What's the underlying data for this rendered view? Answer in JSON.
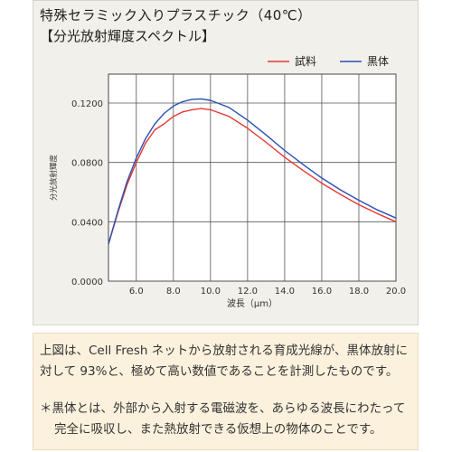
{
  "chart": {
    "title": "特殊セラミック入りプラスチック（40℃）",
    "subtitle": "【分光放射輝度スペクトル】"
  },
  "chart_data": {
    "type": "line",
    "title": "特殊セラミック入りプラスチック（40℃）",
    "subtitle": "【分光放射輝度スペクトル】",
    "xlabel": "波長（μm）",
    "ylabel": "分光放射輝度",
    "xlim": [
      4.5,
      20.0
    ],
    "ylim": [
      0.0,
      0.12
    ],
    "xticks": [
      "6.0",
      "8.0",
      "10.0",
      "12.0",
      "14.0",
      "16.0",
      "18.0",
      "20.0"
    ],
    "yticks": [
      "0.0000",
      "0.0400",
      "0.0800",
      "0.1200"
    ],
    "grid": true,
    "legend_position": "top-right",
    "series": [
      {
        "name": "試料",
        "color": "#e53935",
        "x": [
          4.5,
          5.0,
          5.5,
          6.0,
          6.5,
          7.0,
          7.5,
          8.0,
          8.5,
          9.0,
          9.5,
          10.0,
          11.0,
          12.0,
          13.0,
          14.0,
          15.0,
          16.0,
          17.0,
          18.0,
          19.0,
          20.0
        ],
        "values": [
          0.025,
          0.046,
          0.065,
          0.08,
          0.093,
          0.102,
          0.106,
          0.111,
          0.114,
          0.1155,
          0.1163,
          0.1155,
          0.111,
          0.103,
          0.0935,
          0.0835,
          0.0745,
          0.066,
          0.0585,
          0.0515,
          0.0455,
          0.04
        ]
      },
      {
        "name": "黒体",
        "color": "#2b4fb3",
        "x": [
          4.5,
          5.0,
          5.5,
          6.0,
          6.5,
          7.0,
          7.5,
          8.0,
          8.5,
          9.0,
          9.5,
          10.0,
          11.0,
          12.0,
          13.0,
          14.0,
          15.0,
          16.0,
          17.0,
          18.0,
          19.0,
          20.0
        ],
        "values": [
          0.025,
          0.047,
          0.067,
          0.083,
          0.096,
          0.106,
          0.113,
          0.118,
          0.121,
          0.1225,
          0.1228,
          0.1218,
          0.117,
          0.1085,
          0.0985,
          0.088,
          0.0785,
          0.0695,
          0.0615,
          0.0545,
          0.048,
          0.0425
        ]
      }
    ]
  },
  "caption": {
    "text": "上図は、Cell Fresh ネットから放射される育成光線が、黒体放射に対して 93%と、極めて高い数値であることを計測したものです。",
    "note_line1": "＊黒体とは、外部から入射する電磁波を、あらゆる波長にわたって",
    "note_line2": "完全に吸収し、また熱放射できる仮想上の物体のことです。"
  }
}
